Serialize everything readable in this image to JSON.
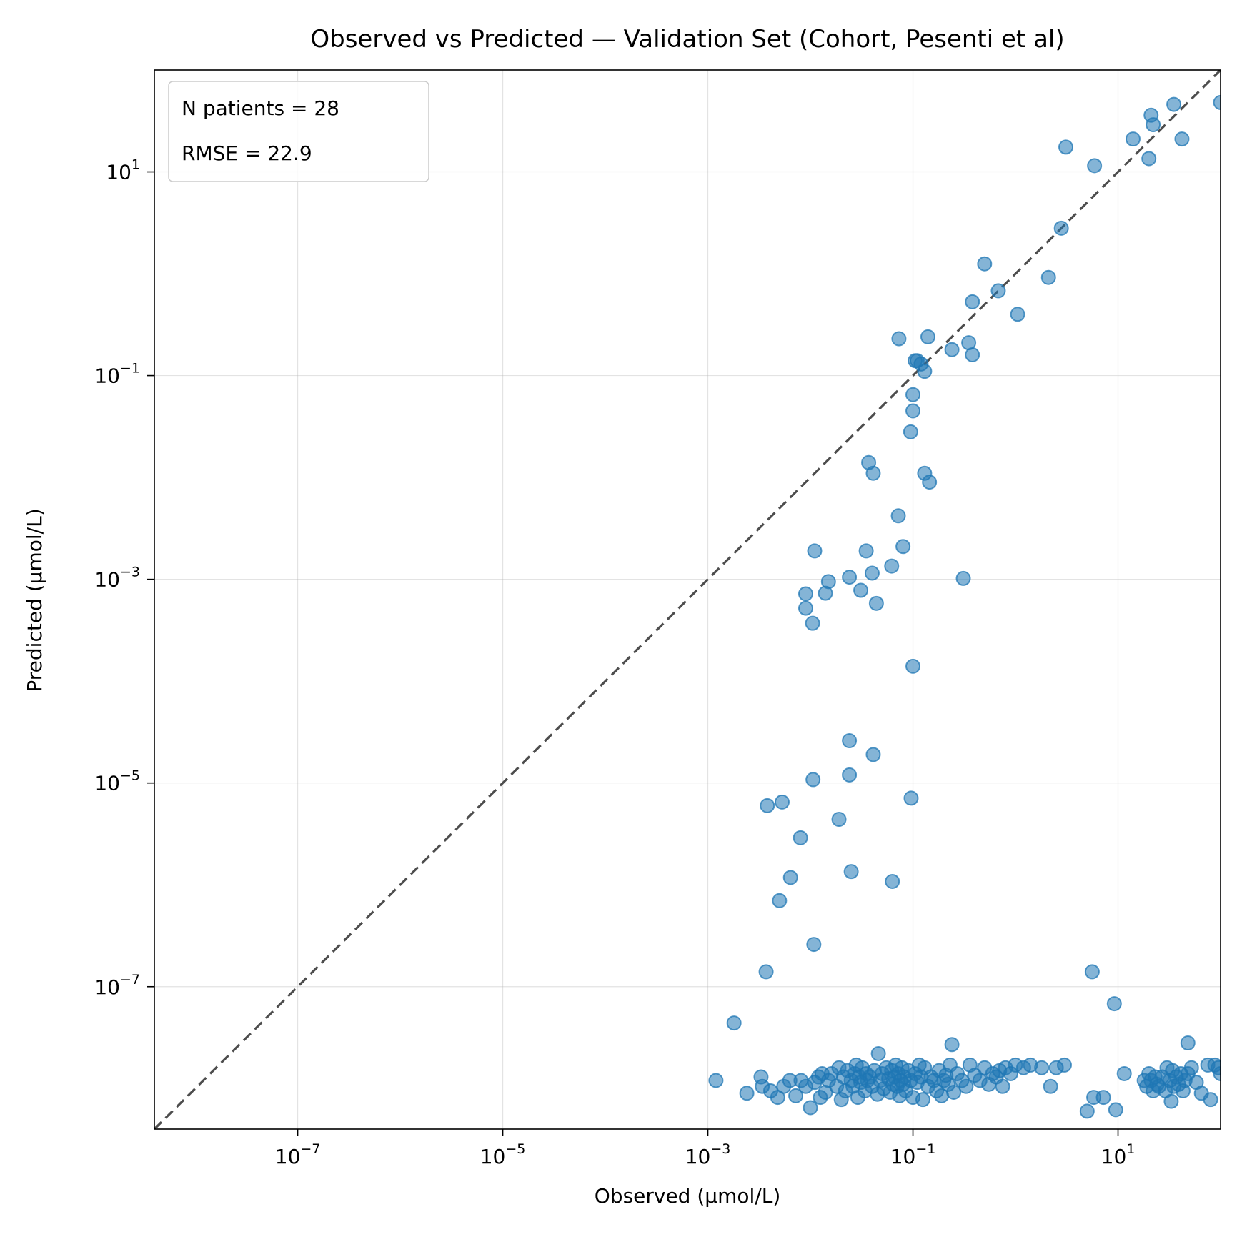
{
  "chart_data": {
    "type": "scatter",
    "title": "Observed vs Predicted — Validation Set (Cohort, Pesenti et al)",
    "xlabel": "Observed (µmol/L)",
    "ylabel": "Predicted (µmol/L)",
    "xscale": "log",
    "yscale": "log",
    "xlim": [
      4e-09,
      100
    ],
    "ylim": [
      4e-09,
      100
    ],
    "xticks": [
      {
        "base": "10",
        "exp": "−7",
        "value": 1e-07
      },
      {
        "base": "10",
        "exp": "−5",
        "value": 1e-05
      },
      {
        "base": "10",
        "exp": "−3",
        "value": 0.001
      },
      {
        "base": "10",
        "exp": "−1",
        "value": 0.1
      },
      {
        "base": "10",
        "exp": "1",
        "value": 10
      }
    ],
    "yticks": [
      {
        "base": "10",
        "exp": "−7",
        "value": 1e-07
      },
      {
        "base": "10",
        "exp": "−5",
        "value": 1e-05
      },
      {
        "base": "10",
        "exp": "−3",
        "value": 0.001
      },
      {
        "base": "10",
        "exp": "−1",
        "value": 0.1
      },
      {
        "base": "10",
        "exp": "1",
        "value": 10
      }
    ],
    "grid": true,
    "identity_line": true,
    "legend": {
      "placement": "top-left",
      "lines": [
        "N patients = 28",
        "RMSE = 22.9"
      ]
    },
    "colors": {
      "points": "#1f77b4",
      "identity": "#4d4d4d",
      "grid": "#b0b0b0"
    },
    "points": [
      [
        100,
        48
      ],
      [
        35,
        46
      ],
      [
        21,
        36
      ],
      [
        22,
        29
      ],
      [
        14,
        21
      ],
      [
        42,
        21
      ],
      [
        20,
        13.5
      ],
      [
        3.1,
        17.5
      ],
      [
        5.9,
        11.5
      ],
      [
        2.8,
        2.8
      ],
      [
        0.5,
        1.25
      ],
      [
        2.1,
        0.92
      ],
      [
        0.38,
        0.53
      ],
      [
        0.68,
        0.68
      ],
      [
        1.05,
        0.4
      ],
      [
        0.073,
        0.23
      ],
      [
        0.14,
        0.24
      ],
      [
        0.24,
        0.18
      ],
      [
        0.35,
        0.21
      ],
      [
        0.38,
        0.16
      ],
      [
        0.105,
        0.14
      ],
      [
        0.11,
        0.14
      ],
      [
        0.12,
        0.13
      ],
      [
        0.13,
        0.11
      ],
      [
        0.1,
        0.065
      ],
      [
        0.1,
        0.045
      ],
      [
        0.095,
        0.028
      ],
      [
        0.037,
        0.014
      ],
      [
        0.041,
        0.011
      ],
      [
        0.13,
        0.011
      ],
      [
        0.145,
        0.009
      ],
      [
        0.072,
        0.0042
      ],
      [
        0.08,
        0.0021
      ],
      [
        0.011,
        0.0019
      ],
      [
        0.035,
        0.0019
      ],
      [
        0.062,
        0.00135
      ],
      [
        0.04,
        0.00115
      ],
      [
        0.024,
        0.00105
      ],
      [
        0.015,
        0.00095
      ],
      [
        0.31,
        0.00102
      ],
      [
        0.014,
        0.00073
      ],
      [
        0.009,
        0.00072
      ],
      [
        0.031,
        0.00078
      ],
      [
        0.044,
        0.00058
      ],
      [
        0.009,
        0.00052
      ],
      [
        0.0105,
        0.00037
      ],
      [
        0.1,
        0.00014
      ],
      [
        0.024,
        1.2e-05
      ],
      [
        0.024,
        2.6e-05
      ],
      [
        0.041,
        1.9e-05
      ],
      [
        0.0106,
        1.08e-05
      ],
      [
        0.096,
        7.1e-06
      ],
      [
        0.0053,
        6.5e-06
      ],
      [
        0.0038,
        6e-06
      ],
      [
        0.019,
        4.4e-06
      ],
      [
        0.008,
        2.9e-06
      ],
      [
        0.025,
        1.35e-06
      ],
      [
        0.0064,
        1.18e-06
      ],
      [
        0.063,
        1.08e-06
      ],
      [
        0.005,
        7e-07
      ],
      [
        0.0108,
        2.6e-07
      ],
      [
        0.0037,
        1.4e-07
      ],
      [
        5.6,
        1.4e-07
      ],
      [
        9.2,
        6.8e-08
      ],
      [
        0.0018,
        4.4e-08
      ],
      [
        0.24,
        2.7e-08
      ],
      [
        48,
        2.8e-08
      ],
      [
        0.0012,
        1.2e-08
      ],
      [
        0.0024,
        9e-09
      ],
      [
        0.0033,
        1.3e-08
      ],
      [
        0.0034,
        1.05e-08
      ],
      [
        0.0041,
        9.5e-09
      ],
      [
        0.0048,
        8.2e-09
      ],
      [
        0.0055,
        1.05e-08
      ],
      [
        0.0063,
        1.2e-08
      ],
      [
        0.0072,
        8.5e-09
      ],
      [
        0.0081,
        1.2e-08
      ],
      [
        0.009,
        1.05e-08
      ],
      [
        0.01,
        6.5e-09
      ],
      [
        0.011,
        1.15e-08
      ],
      [
        0.012,
        1.3e-08
      ],
      [
        0.0125,
        8.2e-09
      ],
      [
        0.013,
        1.4e-08
      ],
      [
        0.014,
        9.2e-09
      ],
      [
        0.015,
        1.2e-08
      ],
      [
        0.016,
        1.4e-08
      ],
      [
        0.018,
        1.05e-08
      ],
      [
        0.019,
        1.6e-08
      ],
      [
        0.02,
        7.8e-09
      ],
      [
        0.021,
        1.3e-08
      ],
      [
        0.022,
        9.5e-09
      ],
      [
        0.023,
        1.5e-08
      ],
      [
        0.025,
        1.2e-08
      ],
      [
        0.026,
        1.05e-08
      ],
      [
        0.027,
        1.4e-08
      ],
      [
        0.028,
        1.7e-08
      ],
      [
        0.029,
        8.2e-09
      ],
      [
        0.03,
        1.3e-08
      ],
      [
        0.031,
        1.15e-08
      ],
      [
        0.032,
        1.6e-08
      ],
      [
        0.034,
        9.5e-09
      ],
      [
        0.035,
        1.4e-08
      ],
      [
        0.036,
        1.2e-08
      ],
      [
        0.038,
        1.3e-08
      ],
      [
        0.04,
        1.05e-08
      ],
      [
        0.042,
        1.5e-08
      ],
      [
        0.045,
        8.8e-09
      ],
      [
        0.046,
        2.2e-08
      ],
      [
        0.048,
        1.2e-08
      ],
      [
        0.05,
        1.4e-08
      ],
      [
        0.052,
        1e-08
      ],
      [
        0.055,
        1.6e-08
      ],
      [
        0.058,
        1.25e-08
      ],
      [
        0.06,
        9.2e-09
      ],
      [
        0.062,
        1.5e-08
      ],
      [
        0.064,
        1.1e-08
      ],
      [
        0.066,
        1.3e-08
      ],
      [
        0.068,
        1.7e-08
      ],
      [
        0.07,
        1.05e-08
      ],
      [
        0.072,
        1.4e-08
      ],
      [
        0.074,
        8.5e-09
      ],
      [
        0.076,
        1.2e-08
      ],
      [
        0.078,
        1.6e-08
      ],
      [
        0.08,
        1.1e-08
      ],
      [
        0.082,
        1.3e-08
      ],
      [
        0.085,
        9.5e-09
      ],
      [
        0.09,
        1.5e-08
      ],
      [
        0.095,
        1.2e-08
      ],
      [
        0.1,
        8.2e-09
      ],
      [
        0.105,
        1.4e-08
      ],
      [
        0.11,
        1.15e-08
      ],
      [
        0.115,
        1.7e-08
      ],
      [
        0.12,
        1.3e-08
      ],
      [
        0.125,
        7.8e-09
      ],
      [
        0.13,
        1.6e-08
      ],
      [
        0.14,
        1.05e-08
      ],
      [
        0.15,
        1.3e-08
      ],
      [
        0.16,
        1.2e-08
      ],
      [
        0.17,
        9.5e-09
      ],
      [
        0.18,
        1.5e-08
      ],
      [
        0.19,
        8.5e-09
      ],
      [
        0.2,
        1.2e-08
      ],
      [
        0.21,
        1.35e-08
      ],
      [
        0.22,
        1.1e-08
      ],
      [
        0.23,
        1.7e-08
      ],
      [
        0.25,
        9.2e-09
      ],
      [
        0.27,
        1.4e-08
      ],
      [
        0.3,
        1.2e-08
      ],
      [
        0.33,
        1.05e-08
      ],
      [
        0.36,
        1.7e-08
      ],
      [
        0.4,
        1.35e-08
      ],
      [
        0.45,
        1.2e-08
      ],
      [
        0.5,
        1.6e-08
      ],
      [
        0.55,
        1.1e-08
      ],
      [
        0.6,
        1.4e-08
      ],
      [
        0.65,
        1.3e-08
      ],
      [
        0.7,
        1.5e-08
      ],
      [
        0.75,
        1.05e-08
      ],
      [
        0.8,
        1.6e-08
      ],
      [
        0.9,
        1.4e-08
      ],
      [
        1.0,
        1.7e-08
      ],
      [
        1.2,
        1.6e-08
      ],
      [
        1.4,
        1.7e-08
      ],
      [
        1.8,
        1.6e-08
      ],
      [
        2.2,
        1.05e-08
      ],
      [
        2.5,
        1.6e-08
      ],
      [
        3.0,
        1.7e-08
      ],
      [
        5.0,
        6e-09
      ],
      [
        5.8,
        8.2e-09
      ],
      [
        7.2,
        8.2e-09
      ],
      [
        9.5,
        6.2e-09
      ],
      [
        11.5,
        1.4e-08
      ],
      [
        18,
        1.2e-08
      ],
      [
        19,
        1.05e-08
      ],
      [
        20,
        1.4e-08
      ],
      [
        21,
        1.2e-08
      ],
      [
        22,
        9.5e-09
      ],
      [
        23,
        1.3e-08
      ],
      [
        24,
        1.1e-08
      ],
      [
        25,
        1.05e-08
      ],
      [
        27,
        1.3e-08
      ],
      [
        29,
        9.5e-09
      ],
      [
        30,
        1.6e-08
      ],
      [
        32,
        1.2e-08
      ],
      [
        33,
        7.5e-09
      ],
      [
        34,
        1.5e-08
      ],
      [
        35,
        1.05e-08
      ],
      [
        37,
        1.3e-08
      ],
      [
        39,
        1.1e-08
      ],
      [
        41,
        1.4e-08
      ],
      [
        43,
        9.5e-09
      ],
      [
        45,
        1.2e-08
      ],
      [
        48,
        1.4e-08
      ],
      [
        52,
        1.6e-08
      ],
      [
        58,
        1.15e-08
      ],
      [
        65,
        9e-09
      ],
      [
        75,
        1.7e-08
      ],
      [
        80,
        7.8e-09
      ],
      [
        88,
        1.7e-08
      ],
      [
        95,
        1.6e-08
      ],
      [
        100,
        1.4e-08
      ]
    ]
  }
}
